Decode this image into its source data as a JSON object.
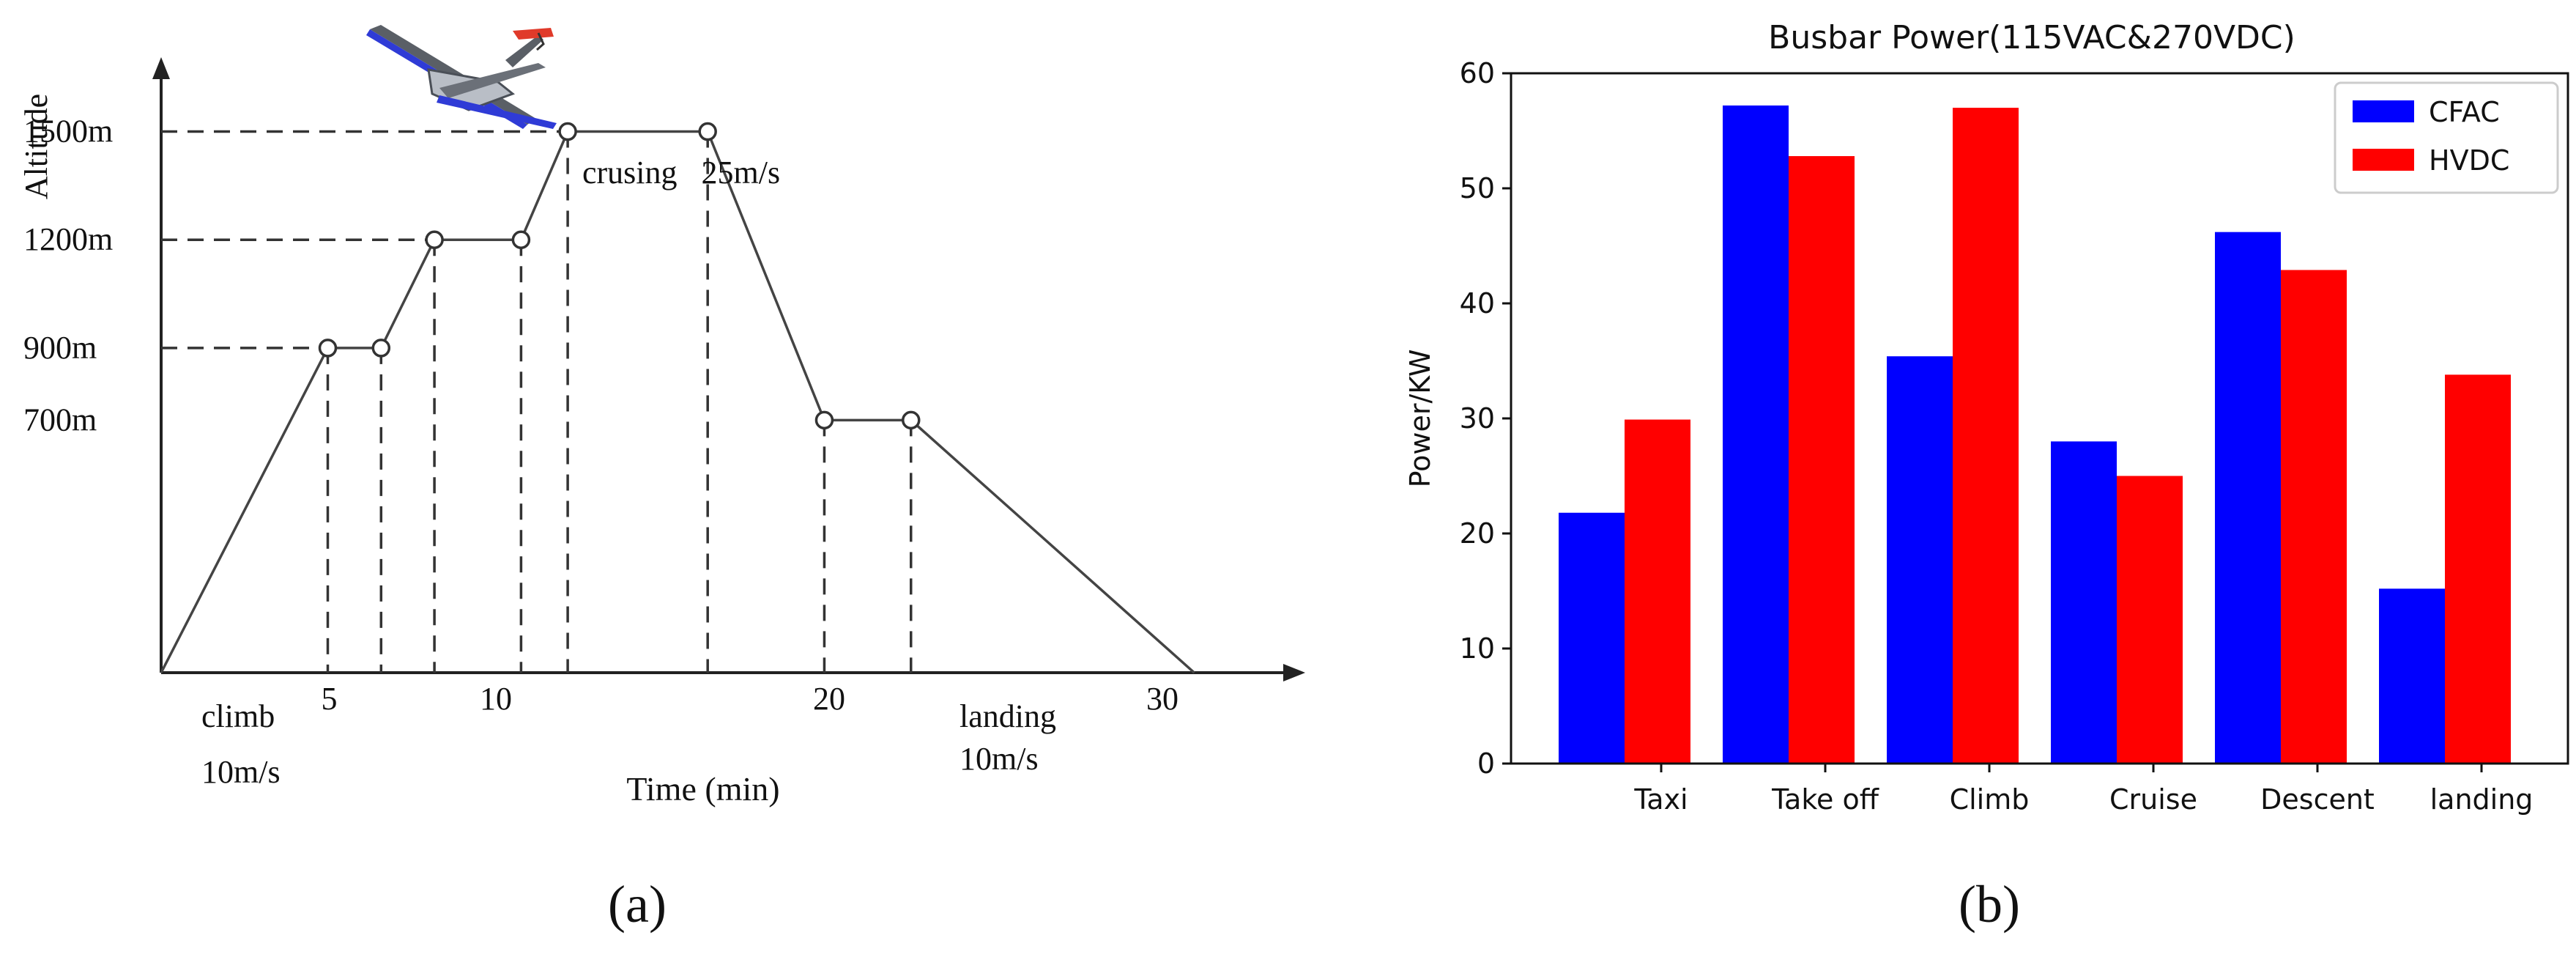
{
  "panel_a": {
    "label": "(a)",
    "y_axis_label": "Altitude",
    "x_axis_label": "Time (min)",
    "annotations": {
      "climb": "climb",
      "climb_speed": "10m/s",
      "cruise": "crusing   25m/s",
      "landing": "landing",
      "landing_speed": "10m/s"
    }
  },
  "panel_b": {
    "label": "(b)"
  },
  "chart_data": [
    {
      "type": "line",
      "ylabel": "Altitude",
      "xlabel": "Time (min)",
      "xlim": [
        0,
        31
      ],
      "x_ticks": [
        5,
        10,
        20,
        30
      ],
      "y_ticks": [
        700,
        900,
        1200,
        1500
      ],
      "y_tick_labels": [
        "700m",
        "900m",
        "1200m",
        "1500m"
      ],
      "series": [
        {
          "points": [
            {
              "x": 0,
              "y": 0
            },
            {
              "x": 5,
              "y": 900
            },
            {
              "x": 6.6,
              "y": 900
            },
            {
              "x": 8.2,
              "y": 1200
            },
            {
              "x": 10.8,
              "y": 1200
            },
            {
              "x": 12.2,
              "y": 1500
            },
            {
              "x": 16.4,
              "y": 1500
            },
            {
              "x": 19.9,
              "y": 700
            },
            {
              "x": 22.5,
              "y": 700
            },
            {
              "x": 31,
              "y": 0
            }
          ]
        }
      ],
      "grid": false
    },
    {
      "type": "bar",
      "title": "Busbar Power(115VAC&270VDC)",
      "xlabel": "",
      "ylabel": "Power/KW",
      "ylim": [
        0,
        60
      ],
      "y_ticks": [
        0,
        10,
        20,
        30,
        40,
        50,
        60
      ],
      "categories": [
        "Taxi",
        "Take off",
        "Climb",
        "Cruise",
        "Descent",
        "landing"
      ],
      "series": [
        {
          "name": "CFAC",
          "color": "#0000ff",
          "values": [
            21.8,
            57.2,
            35.4,
            28.0,
            46.2,
            15.2
          ]
        },
        {
          "name": "HVDC",
          "color": "#ff0000",
          "values": [
            29.9,
            52.8,
            57.0,
            25.0,
            42.9,
            33.8
          ]
        }
      ],
      "legend": "top-right",
      "grid": false
    }
  ]
}
